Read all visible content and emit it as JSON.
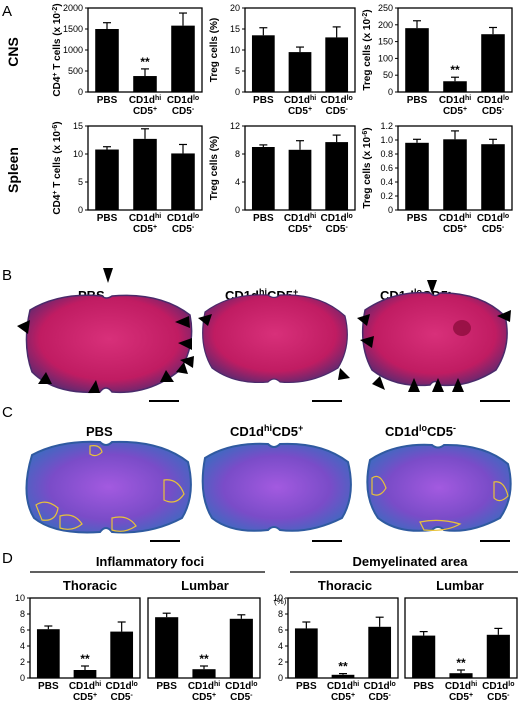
{
  "panels": {
    "A": {
      "letter": "A",
      "row_labels": [
        "CNS",
        "Spleen"
      ],
      "x_categories": [
        {
          "main": "PBS",
          "sub": ""
        },
        {
          "main": "CD1d",
          "sup": "hi",
          "sub": "CD5",
          "subsup": "+"
        },
        {
          "main": "CD1d",
          "sup": "lo",
          "sub": "CD5",
          "subsup": "-"
        }
      ]
    },
    "B": {
      "letter": "B",
      "image_titles": [
        {
          "main": "PBS"
        },
        {
          "main": "CD1d",
          "sup": "hi",
          "rest": "CD5",
          "restsup": "+"
        },
        {
          "main": "CD1d",
          "sup": "lo",
          "rest": "CD5",
          "restsup": "-"
        }
      ],
      "colors": {
        "tissue": "#c8246a",
        "dark_edge": "#3a2a6a",
        "arrow": "#000000"
      }
    },
    "C": {
      "letter": "C",
      "image_titles": [
        {
          "main": "PBS"
        },
        {
          "main": "CD1d",
          "sup": "hi",
          "rest": "CD5",
          "restsup": "+"
        },
        {
          "main": "CD1d",
          "sup": "lo",
          "rest": "CD5",
          "restsup": "-"
        }
      ],
      "colors": {
        "stain": "#8a4fd0",
        "white_matter": "#3f78c4",
        "foci_outline": "#e8c23a"
      }
    },
    "D": {
      "letter": "D",
      "group_headers": [
        "Inflammatory foci",
        "Demyelinated area"
      ],
      "sub_headers": [
        "Thoracic",
        "Lumbar",
        "Thoracic",
        "Lumbar"
      ],
      "percent_unit": "(%)",
      "x_categories": [
        {
          "main": "PBS",
          "sub": ""
        },
        {
          "main": "CD1d",
          "sup": "hi",
          "sub": "CD5",
          "subsup": "+"
        },
        {
          "main": "CD1d",
          "sup": "lo",
          "sub": "CD5",
          "subsup": "-"
        }
      ]
    }
  },
  "chart_data": [
    {
      "id": "A-cns-cd4",
      "type": "bar",
      "categories": [
        "PBS",
        "CD1dhiCD5+",
        "CD1dloCD5-"
      ],
      "values": [
        1500,
        380,
        1580
      ],
      "errors": [
        150,
        170,
        300
      ],
      "ylim": [
        0,
        2000
      ],
      "yticks": [
        "0",
        "500",
        "1000",
        "1500",
        "2000"
      ],
      "ylabel": "CD4+ T cells (x 10-2)",
      "annotation": "**",
      "annotated_index": 1
    },
    {
      "id": "A-cns-treg-pct",
      "type": "bar",
      "categories": [
        "PBS",
        "CD1dhiCD5+",
        "CD1dloCD5-"
      ],
      "values": [
        13.5,
        9.5,
        13.0
      ],
      "errors": [
        1.8,
        1.2,
        2.5
      ],
      "ylim": [
        0,
        20
      ],
      "yticks": [
        "0",
        "5",
        "10",
        "15",
        "20"
      ],
      "ylabel": "Treg cells (%)"
    },
    {
      "id": "A-cns-treg-num",
      "type": "bar",
      "categories": [
        "PBS",
        "CD1dhiCD5+",
        "CD1dloCD5-"
      ],
      "values": [
        190,
        32,
        172
      ],
      "errors": [
        22,
        12,
        20
      ],
      "ylim": [
        0,
        250
      ],
      "yticks": [
        "0",
        "50",
        "100",
        "150",
        "200",
        "250"
      ],
      "ylabel": "Treg cells (x 10-2)",
      "annotation": "**",
      "annotated_index": 1
    },
    {
      "id": "A-spleen-cd4",
      "type": "bar",
      "categories": [
        "PBS",
        "CD1dhiCD5+",
        "CD1dloCD5-"
      ],
      "values": [
        10.8,
        12.7,
        10.1
      ],
      "errors": [
        0.5,
        1.8,
        1.6
      ],
      "ylim": [
        0,
        15
      ],
      "yticks": [
        "0",
        "5",
        "10",
        "15"
      ],
      "ylabel": "CD4+ T cells (x 10-6)"
    },
    {
      "id": "A-spleen-treg-pct",
      "type": "bar",
      "categories": [
        "PBS",
        "CD1dhiCD5+",
        "CD1dloCD5-"
      ],
      "values": [
        9.0,
        8.6,
        9.7
      ],
      "errors": [
        0.3,
        1.3,
        1.0
      ],
      "ylim": [
        0,
        12
      ],
      "yticks": [
        "0",
        "4",
        "8",
        "12"
      ],
      "ylabel": "Treg cells (%)"
    },
    {
      "id": "A-spleen-treg-num",
      "type": "bar",
      "categories": [
        "PBS",
        "CD1dhiCD5+",
        "CD1dloCD5-"
      ],
      "values": [
        0.96,
        1.01,
        0.94
      ],
      "errors": [
        0.05,
        0.12,
        0.07
      ],
      "ylim": [
        0,
        1.2
      ],
      "yticks": [
        "0",
        "0.2",
        "0.4",
        "0.6",
        "0.8",
        "1.0",
        "1.2"
      ],
      "ylabel": "Treg cells (x 10-6)"
    },
    {
      "id": "D-inflam-thoracic",
      "type": "bar",
      "categories": [
        "PBS",
        "CD1dhiCD5+",
        "CD1dloCD5-"
      ],
      "values": [
        6.1,
        1.0,
        5.8
      ],
      "errors": [
        0.4,
        0.5,
        1.2
      ],
      "ylim": [
        0,
        10
      ],
      "yticks": [
        "0",
        "2",
        "4",
        "6",
        "8",
        "10"
      ],
      "annotation": "**",
      "annotated_index": 1
    },
    {
      "id": "D-inflam-lumbar",
      "type": "bar",
      "categories": [
        "PBS",
        "CD1dhiCD5+",
        "CD1dloCD5-"
      ],
      "values": [
        7.6,
        1.1,
        7.4
      ],
      "errors": [
        0.5,
        0.4,
        0.5
      ],
      "ylim": [
        0,
        10
      ],
      "yticks": [],
      "annotation": "**",
      "annotated_index": 1
    },
    {
      "id": "D-demyel-thoracic",
      "type": "bar",
      "categories": [
        "PBS",
        "CD1dhiCD5+",
        "CD1dloCD5-"
      ],
      "values": [
        6.2,
        0.4,
        6.4
      ],
      "errors": [
        0.8,
        0.15,
        1.2
      ],
      "ylim": [
        0,
        10
      ],
      "yticks": [
        "0",
        "2",
        "4",
        "6",
        "8",
        "10"
      ],
      "annotation": "**",
      "annotated_index": 1
    },
    {
      "id": "D-demyel-lumbar",
      "type": "bar",
      "categories": [
        "PBS",
        "CD1dhiCD5+",
        "CD1dloCD5-"
      ],
      "values": [
        5.3,
        0.6,
        5.4
      ],
      "errors": [
        0.5,
        0.4,
        0.8
      ],
      "ylim": [
        0,
        10
      ],
      "yticks": [],
      "annotation": "**",
      "annotated_index": 1
    }
  ]
}
